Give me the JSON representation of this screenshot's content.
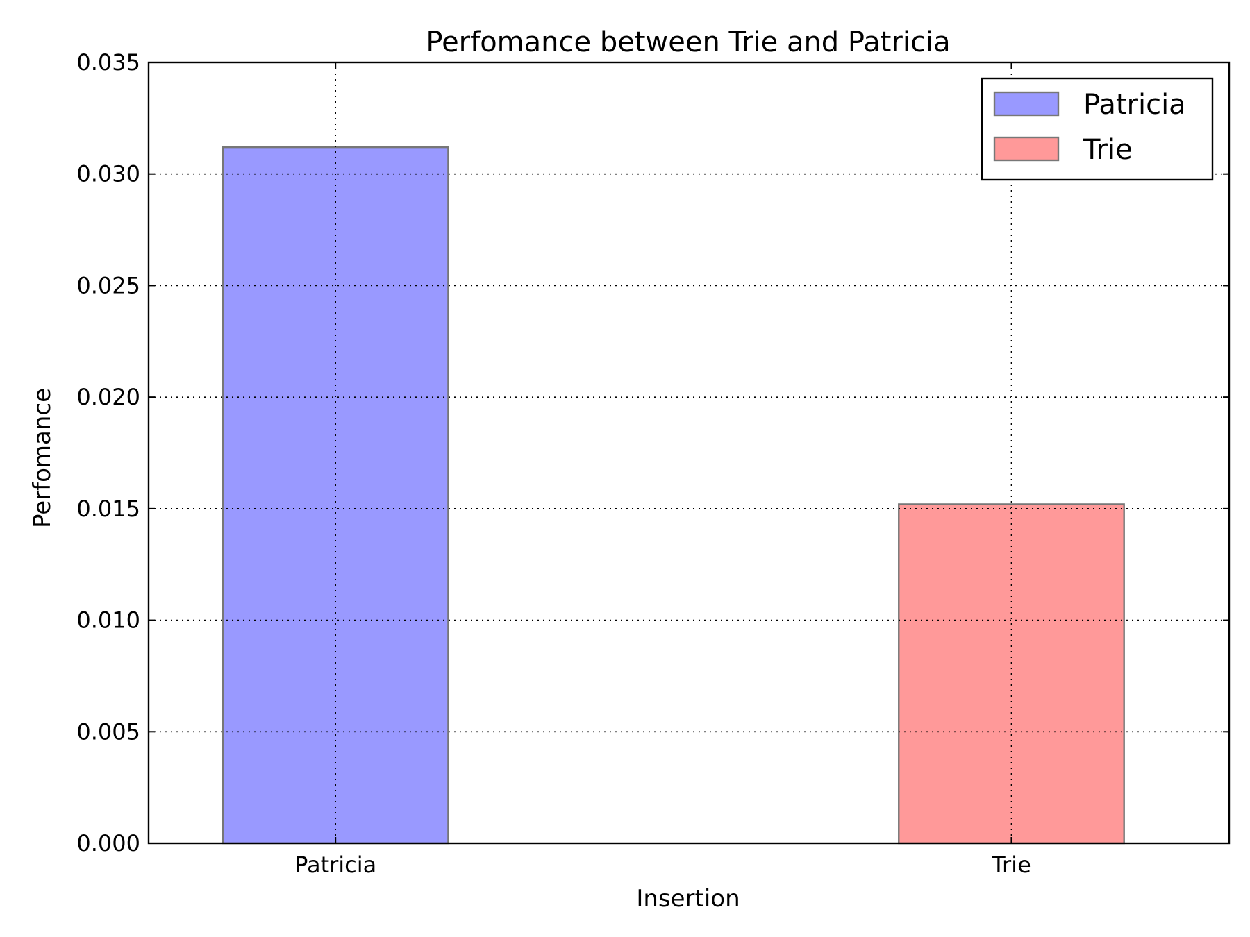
{
  "chart_data": {
    "type": "bar",
    "title": "Perfomance between Trie and Patricia",
    "xlabel": "Insertion",
    "ylabel": "Perfomance",
    "categories": [
      "Patricia",
      "Trie"
    ],
    "series": [
      {
        "name": "Patricia",
        "values": [
          0.0312,
          null
        ],
        "color": "#9999ff"
      },
      {
        "name": "Trie",
        "values": [
          null,
          0.0152
        ],
        "color": "#ff9999"
      }
    ],
    "ylim": [
      0,
      0.035
    ],
    "yticks": [
      0.0,
      0.005,
      0.01,
      0.015,
      0.02,
      0.025,
      0.03,
      0.035
    ],
    "ytick_labels": [
      "0.000",
      "0.005",
      "0.010",
      "0.015",
      "0.020",
      "0.025",
      "0.030",
      "0.035"
    ],
    "grid": true,
    "legend_position": "top-right",
    "edge_color": "#777777"
  }
}
